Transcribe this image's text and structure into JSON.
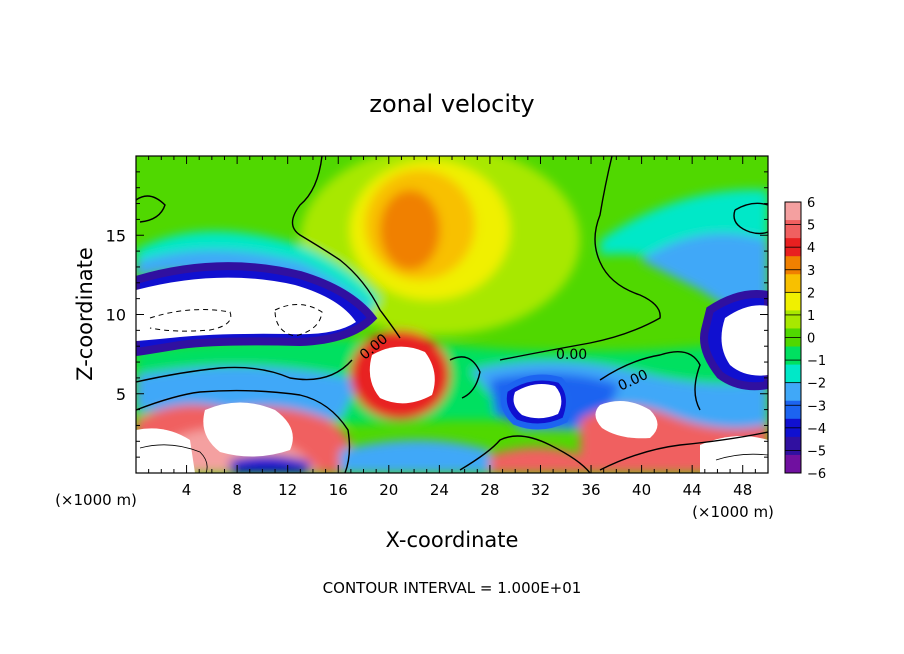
{
  "chart_data": {
    "type": "heatmap",
    "title": "zonal velocity",
    "xlabel": "X-coordinate",
    "ylabel": "Z-coordinate",
    "x_unit": "(×1000 m)",
    "y_unit": "(×1000 m)",
    "footnote": "CONTOUR INTERVAL = 1.000E+01",
    "x_range": [
      0,
      50
    ],
    "y_range": [
      0,
      20
    ],
    "x_ticks": [
      4,
      8,
      12,
      16,
      20,
      24,
      28,
      32,
      36,
      40,
      44,
      48
    ],
    "y_ticks": [
      5,
      10,
      15
    ],
    "contour_labels": [
      "0.00",
      "0.00",
      "0.00"
    ],
    "colorbar": {
      "min": -6,
      "max": 6,
      "ticks": [
        6,
        5,
        4,
        3,
        2,
        1,
        0,
        -1,
        -2,
        -3,
        -4,
        -5,
        -6
      ],
      "colors": [
        "#f4a0a0",
        "#f06060",
        "#e82020",
        "#f08000",
        "#f8c000",
        "#f0f000",
        "#a8e800",
        "#50d800",
        "#00e060",
        "#00e8c8",
        "#40a8f8",
        "#1c64f0",
        "#1010d0",
        "#3010a0",
        "#7010a0"
      ]
    }
  }
}
